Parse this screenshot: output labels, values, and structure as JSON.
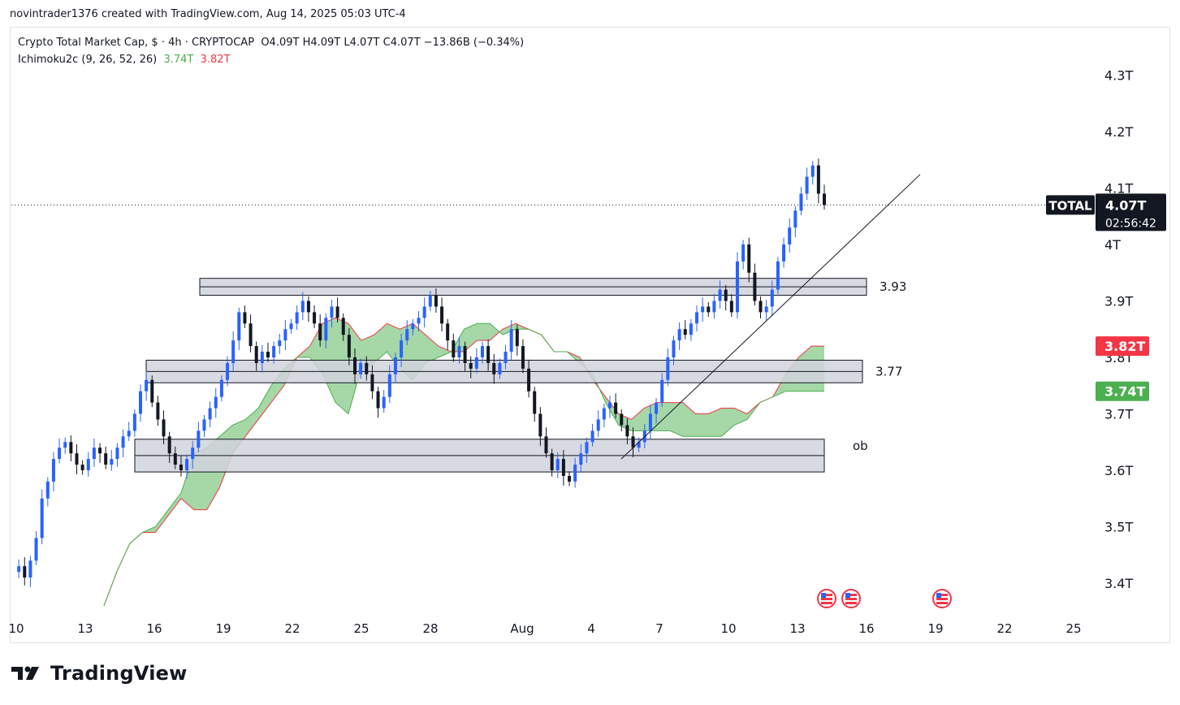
{
  "header": {
    "credit": "novintrader1376 created with TradingView.com, Aug 14, 2025 05:03 UTC-4"
  },
  "legend": {
    "symbol": "Crypto Total Market Cap, $ · 4h · CRYPTOCAP",
    "ohlc": "O4.09T  H4.09T  L4.07T  C4.07T  −13.86B (−0.34%)",
    "indicator": "Ichimoku2c (9, 26, 52, 26)",
    "ind_v1": "3.74T",
    "ind_v2": "3.82T"
  },
  "colors": {
    "up": "#2962ff",
    "down": "#131722",
    "cloud": "#4caf50",
    "cloud_edge": "#f23645",
    "zone_fill": "#d1d4dc",
    "zone_edge": "#131722",
    "badge_red": "#f23645",
    "badge_green": "#4caf50",
    "badge_dark": "#131722"
  },
  "chart_data": {
    "type": "candlestick",
    "symbol": "TOTAL",
    "timeframe": "4h",
    "y_axis": {
      "ticks": [
        "4.3T",
        "4.2T",
        "4.1T",
        "4T",
        "3.9T",
        "3.8T",
        "3.7T",
        "3.6T",
        "3.5T",
        "3.4T"
      ],
      "values": [
        4.3,
        4.2,
        4.1,
        4.0,
        3.9,
        3.8,
        3.7,
        3.6,
        3.5,
        3.4
      ],
      "range": [
        3.35,
        4.35
      ]
    },
    "x_axis": {
      "ticks": [
        "10",
        "13",
        "16",
        "19",
        "22",
        "25",
        "28",
        "Aug",
        "4",
        "7",
        "10",
        "13",
        "16",
        "19",
        "22",
        "25"
      ]
    },
    "price_badge": {
      "label": "TOTAL",
      "value": "4.07T",
      "countdown": "02:56:42",
      "price": 4.07
    },
    "ichimoku_badges": [
      {
        "value": "3.82T",
        "price": 3.82,
        "color": "red"
      },
      {
        "value": "3.74T",
        "price": 3.74,
        "color": "green"
      }
    ],
    "zones": [
      {
        "label": "3.93",
        "top": 3.94,
        "bottom": 3.91
      },
      {
        "label": "3.77",
        "top": 3.795,
        "bottom": 3.755
      },
      {
        "label": "ob",
        "top": 3.655,
        "bottom": 3.597
      }
    ],
    "trendline": {
      "from": [
        "Aug 5",
        3.62
      ],
      "to": [
        "Aug 15",
        4.12
      ]
    },
    "candles_series": [
      3.42,
      3.43,
      3.41,
      3.44,
      3.48,
      3.55,
      3.58,
      3.62,
      3.64,
      3.65,
      3.63,
      3.61,
      3.6,
      3.62,
      3.64,
      3.63,
      3.61,
      3.62,
      3.64,
      3.66,
      3.67,
      3.7,
      3.74,
      3.76,
      3.72,
      3.69,
      3.66,
      3.63,
      3.61,
      3.6,
      3.62,
      3.64,
      3.67,
      3.69,
      3.71,
      3.73,
      3.76,
      3.79,
      3.83,
      3.88,
      3.86,
      3.82,
      3.79,
      3.81,
      3.8,
      3.82,
      3.83,
      3.85,
      3.86,
      3.88,
      3.9,
      3.88,
      3.86,
      3.83,
      3.87,
      3.89,
      3.87,
      3.84,
      3.8,
      3.77,
      3.79,
      3.77,
      3.74,
      3.71,
      3.73,
      3.77,
      3.8,
      3.83,
      3.85,
      3.86,
      3.87,
      3.89,
      3.91,
      3.89,
      3.86,
      3.83,
      3.8,
      3.82,
      3.79,
      3.78,
      3.8,
      3.82,
      3.79,
      3.77,
      3.79,
      3.81,
      3.85,
      3.82,
      3.78,
      3.74,
      3.7,
      3.66,
      3.63,
      3.6,
      3.62,
      3.59,
      3.58,
      3.61,
      3.63,
      3.65,
      3.67,
      3.69,
      3.71,
      3.72,
      3.7,
      3.68,
      3.66,
      3.64,
      3.65,
      3.67,
      3.7,
      3.72,
      3.76,
      3.8,
      3.83,
      3.85,
      3.84,
      3.86,
      3.88,
      3.89,
      3.88,
      3.9,
      3.92,
      3.9,
      3.88,
      3.97,
      4.0,
      3.95,
      3.9,
      3.88,
      3.89,
      3.92,
      3.97,
      4.0,
      4.03,
      4.06,
      4.09,
      4.12,
      4.14,
      4.09,
      4.07
    ],
    "ichimoku": {
      "span_a": [
        3.36,
        3.42,
        3.47,
        3.49,
        3.49,
        3.52,
        3.55,
        3.53,
        3.53,
        3.57,
        3.63,
        3.66,
        3.69,
        3.72,
        3.75,
        3.8,
        3.82,
        3.86,
        3.87,
        3.86,
        3.83,
        3.84,
        3.86,
        3.85,
        3.86,
        3.84,
        3.82,
        3.81,
        3.81,
        3.83,
        3.83,
        3.85,
        3.86,
        3.85,
        3.84,
        3.81,
        3.81,
        3.8,
        3.76,
        3.73,
        3.7,
        3.69,
        3.71,
        3.72,
        3.72,
        3.72,
        3.7,
        3.7,
        3.71,
        3.71,
        3.7,
        3.72,
        3.73,
        3.77,
        3.8,
        3.82,
        3.82
      ],
      "span_b": [
        3.36,
        3.42,
        3.47,
        3.49,
        3.5,
        3.53,
        3.56,
        3.63,
        3.64,
        3.66,
        3.68,
        3.69,
        3.71,
        3.75,
        3.78,
        3.8,
        3.8,
        3.77,
        3.72,
        3.7,
        3.78,
        3.79,
        3.81,
        3.78,
        3.76,
        3.79,
        3.8,
        3.81,
        3.85,
        3.86,
        3.86,
        3.84,
        3.85,
        3.85,
        3.84,
        3.81,
        3.81,
        3.79,
        3.77,
        3.72,
        3.68,
        3.67,
        3.67,
        3.67,
        3.67,
        3.66,
        3.66,
        3.66,
        3.66,
        3.68,
        3.69,
        3.72,
        3.73,
        3.74,
        3.74,
        3.74,
        3.74
      ]
    }
  }
}
